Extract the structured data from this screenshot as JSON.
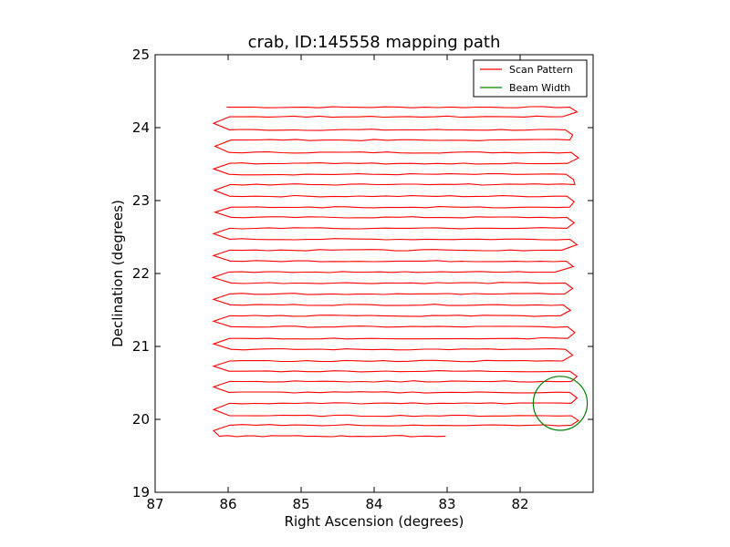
{
  "chart_data": {
    "type": "line",
    "title": "crab, ID:145558 mapping path",
    "xlabel": "Right Ascension (degrees)",
    "ylabel": "Declination (degrees)",
    "xlim": [
      87,
      81
    ],
    "ylim": [
      19,
      25
    ],
    "x_ticks": [
      "87",
      "86",
      "85",
      "84",
      "83",
      "82"
    ],
    "y_ticks": [
      "19",
      "20",
      "21",
      "22",
      "23",
      "24",
      "25"
    ],
    "legend": {
      "position": "top-right",
      "entries": [
        "Scan Pattern",
        "Beam Width"
      ]
    },
    "colors": {
      "scan": "#ff0000",
      "beam": "#008000"
    },
    "scan_rows": {
      "dec_values": [
        24.28,
        24.15,
        23.97,
        23.83,
        23.66,
        23.51,
        23.36,
        23.22,
        23.06,
        22.91,
        22.77,
        22.62,
        22.47,
        22.32,
        22.17,
        22.02,
        21.87,
        21.72,
        21.57,
        21.42,
        21.27,
        21.11,
        20.96,
        20.8,
        20.66,
        20.52,
        20.37,
        20.22,
        20.05,
        19.92,
        19.77
      ],
      "ra_min": [
        86.02,
        85.98,
        85.98,
        85.96,
        85.99,
        85.98,
        85.99,
        85.97,
        85.98,
        85.96,
        85.96,
        85.98,
        85.98,
        85.98,
        85.97,
        85.99,
        85.96,
        85.98,
        85.97,
        85.98,
        85.96,
        85.98,
        85.96,
        85.98,
        85.99,
        85.98,
        85.99,
        85.98,
        85.98,
        85.98,
        86.12
      ],
      "ra_max": [
        81.32,
        81.42,
        81.38,
        81.32,
        81.3,
        81.35,
        81.37,
        81.25,
        81.36,
        81.32,
        81.36,
        81.36,
        81.32,
        81.43,
        81.37,
        81.52,
        81.38,
        81.39,
        81.41,
        81.45,
        81.35,
        81.35,
        81.38,
        81.42,
        81.32,
        81.3,
        81.32,
        81.3,
        81.3,
        81.3,
        83.02
      ]
    },
    "beam_width": {
      "center_ra": 81.45,
      "center_dec": 20.22,
      "radius_deg": 0.37
    }
  }
}
